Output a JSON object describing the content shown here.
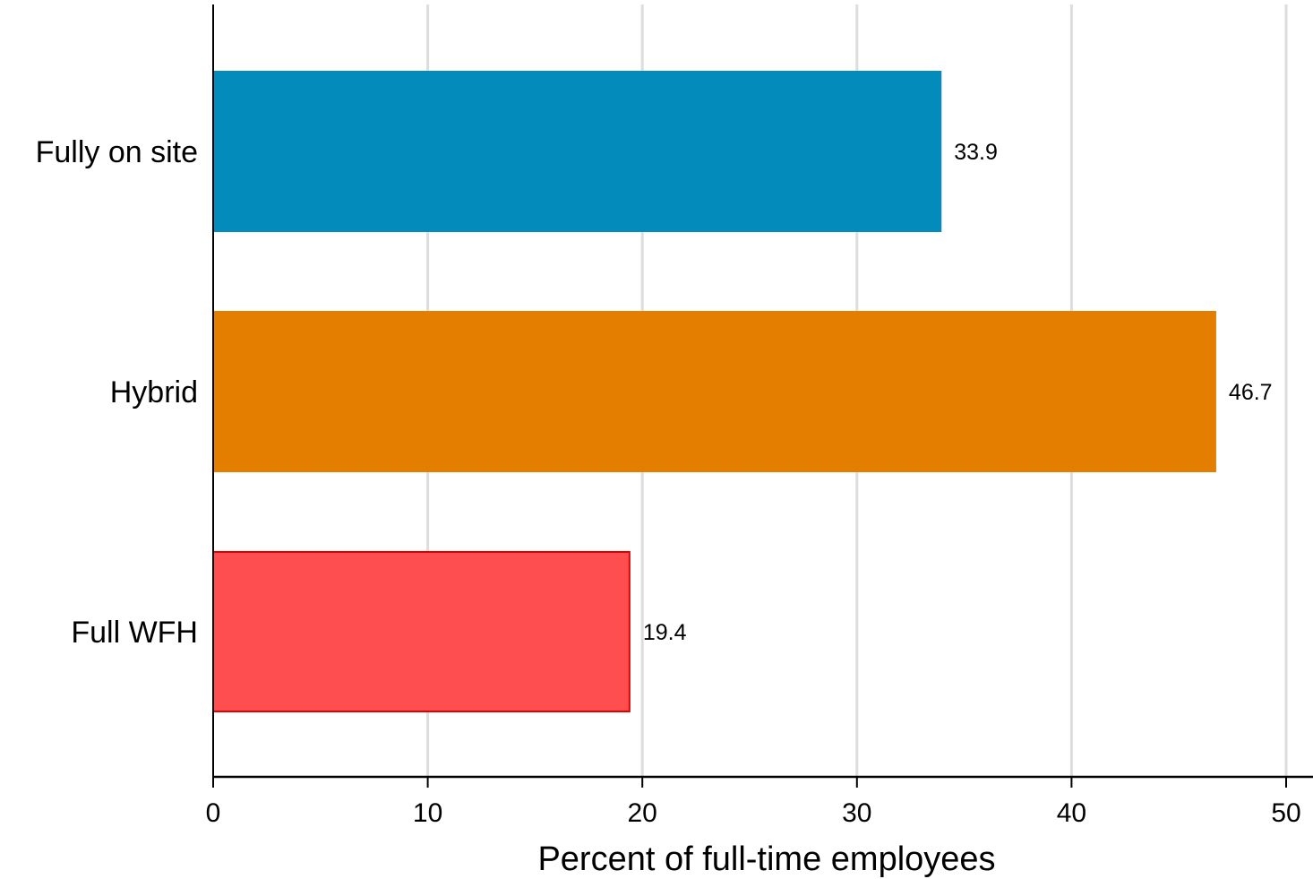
{
  "chart_data": {
    "type": "bar",
    "orientation": "horizontal",
    "categories": [
      "Fully on site",
      "Hybrid",
      "Full WFH"
    ],
    "values": [
      33.9,
      46.7,
      19.4
    ],
    "value_labels": [
      "33.9",
      "46.7",
      "19.4"
    ],
    "colors": [
      "#038BBC",
      "#E37E00",
      "#FF4E50"
    ],
    "xlabel": "Percent of full-time employees",
    "ylabel": "",
    "xlim": [
      0,
      50
    ],
    "xticks": [
      0,
      10,
      20,
      30,
      40,
      50
    ],
    "xtick_labels": [
      "0",
      "10",
      "20",
      "30",
      "40",
      "50"
    ],
    "grid": "vertical",
    "grid_color": "#DDDDDD",
    "legend": "none"
  }
}
